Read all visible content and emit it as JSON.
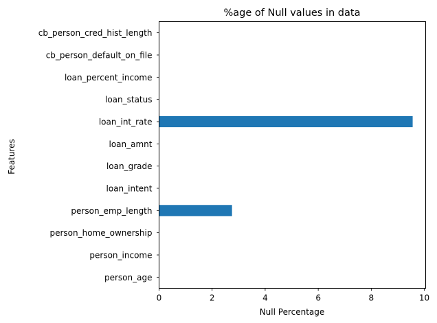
{
  "chart_data": {
    "type": "bar",
    "orientation": "horizontal",
    "title": "%age of Null values in data",
    "xlabel": "Null Percentage",
    "ylabel": "Features",
    "xlim": [
      0,
      10.05
    ],
    "xticks": [
      0,
      2,
      4,
      6,
      8,
      10
    ],
    "grid": false,
    "categories": [
      "person_age",
      "person_income",
      "person_home_ownership",
      "person_emp_length",
      "loan_intent",
      "loan_grade",
      "loan_amnt",
      "loan_int_rate",
      "loan_status",
      "loan_percent_income",
      "cb_person_default_on_file",
      "cb_person_cred_hist_length"
    ],
    "values": [
      0,
      0,
      0,
      2.75,
      0,
      0,
      0,
      9.56,
      0,
      0,
      0,
      0
    ],
    "bar_color": "#1f77b4"
  }
}
